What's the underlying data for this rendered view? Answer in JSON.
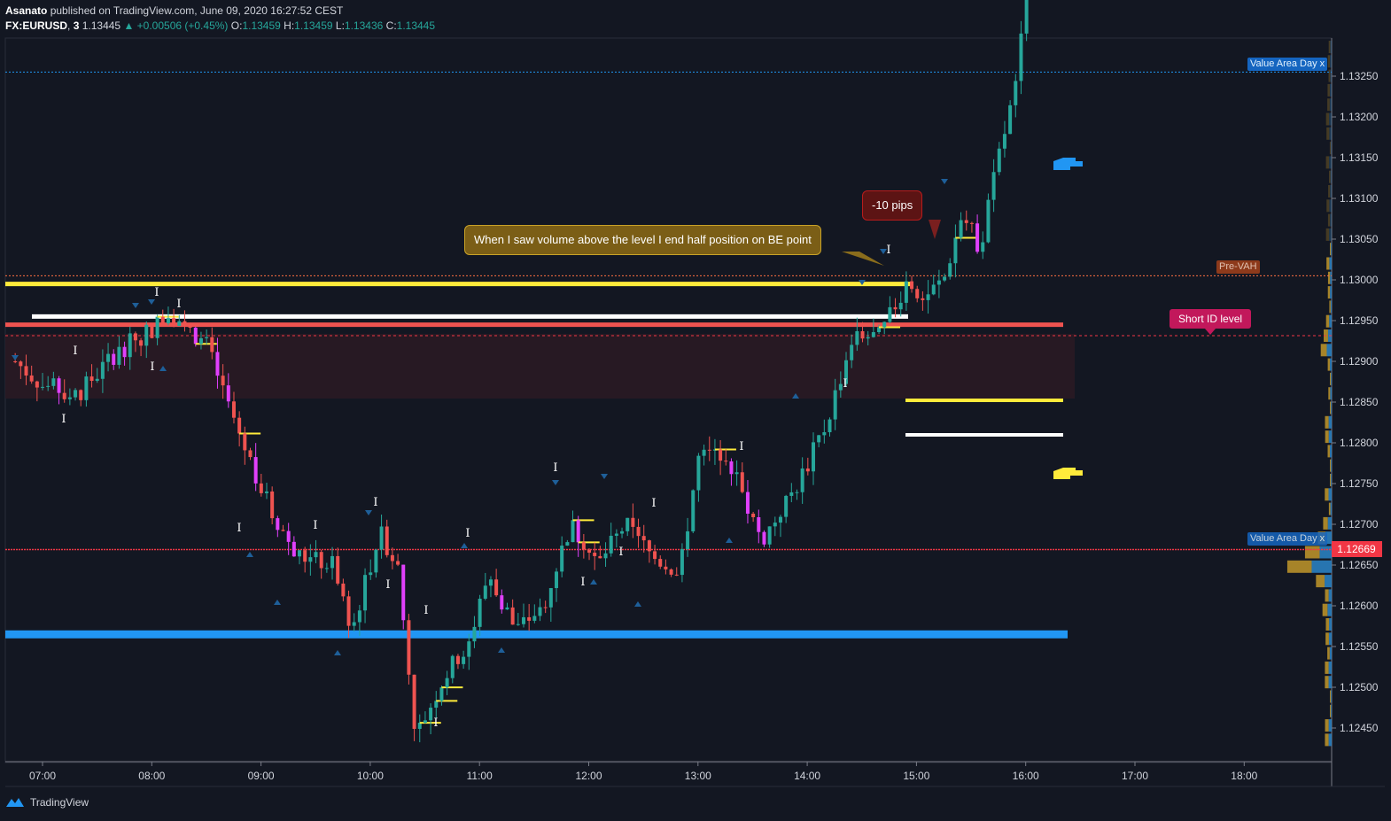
{
  "header": {
    "author": "Asanato",
    "published_text": "published on TradingView.com, June 09, 2020 16:27:52 CEST",
    "symbol": "FX:EURUSD",
    "interval": "3",
    "last": "1.13445",
    "change": "▲ +0.00506 (+0.45%)",
    "o_label": "O:",
    "o": "1.13459",
    "h_label": "H:",
    "h": "1.13459",
    "l_label": "L:",
    "l": "1.13436",
    "c_label": "C:",
    "c": "1.13445"
  },
  "annotations": {
    "callout_be": "When I saw volume above the level I end half position on BE point",
    "callout_pips": "-10 pips",
    "short_id": "Short ID level",
    "pre_vah": "Pre-VAH",
    "value_area_top": "Value Area Day x",
    "value_area_bottom": "Value Area Day x"
  },
  "footer": {
    "brand": "TradingView"
  },
  "colors": {
    "bg": "#131722",
    "up": "#26a69a",
    "down": "#ef5350",
    "magenta": "#e040fb",
    "yellow": "#ffeb3b",
    "blue": "#2196f3",
    "red": "#f23645",
    "white": "#ffffff"
  },
  "chart_data": {
    "type": "candlestick",
    "symbol": "FX:EURUSD",
    "timeframe": "3",
    "x_ticks": [
      "07:00",
      "08:00",
      "09:00",
      "10:00",
      "11:00",
      "12:00",
      "13:00",
      "14:00",
      "15:00",
      "16:00",
      "17:00",
      "18:00"
    ],
    "y_ticks": [
      "1.13250",
      "1.13200",
      "1.13150",
      "1.13100",
      "1.13050",
      "1.13000",
      "1.12950",
      "1.12900",
      "1.12850",
      "1.12800",
      "1.12750",
      "1.12700",
      "1.12650",
      "1.12600",
      "1.12550",
      "1.12500",
      "1.12450"
    ],
    "ylim": [
      1.1239,
      1.1335
    ],
    "current_price_label": "1.12669",
    "levels": [
      {
        "name": "value-area-high",
        "price": 1.12565,
        "color": "#2196f3"
      },
      {
        "name": "yellow-level",
        "price": 1.12995,
        "color": "#ffeb3b"
      },
      {
        "name": "white-level",
        "price": 1.12955,
        "color": "#ffffff"
      },
      {
        "name": "short-id-level",
        "price": 1.12945,
        "color": "#ef5350"
      },
      {
        "name": "pre-vah",
        "price": 1.13005,
        "color": "#ff7043"
      },
      {
        "name": "value-area-day-top",
        "price": 1.13255,
        "color": "#2196f3"
      },
      {
        "name": "value-area-day-bottom",
        "price": 1.12669,
        "color": "#f23645"
      }
    ],
    "path": [
      [
        "06:45",
        1.129
      ],
      [
        "07:00",
        1.1287
      ],
      [
        "07:20",
        1.1286
      ],
      [
        "07:40",
        1.1291
      ],
      [
        "08:00",
        1.1294
      ],
      [
        "08:10",
        1.1296
      ],
      [
        "08:30",
        1.1292
      ],
      [
        "08:50",
        1.128
      ],
      [
        "09:05",
        1.1272
      ],
      [
        "09:20",
        1.1266
      ],
      [
        "09:40",
        1.1265
      ],
      [
        "09:50",
        1.1257
      ],
      [
        "10:05",
        1.1269
      ],
      [
        "10:15",
        1.1265
      ],
      [
        "10:25",
        1.1244
      ],
      [
        "10:40",
        1.1251
      ],
      [
        "10:55",
        1.1256
      ],
      [
        "11:05",
        1.1264
      ],
      [
        "11:20",
        1.1257
      ],
      [
        "11:35",
        1.126
      ],
      [
        "11:50",
        1.127
      ],
      [
        "12:05",
        1.1265
      ],
      [
        "12:20",
        1.127
      ],
      [
        "12:35",
        1.1266
      ],
      [
        "12:50",
        1.1264
      ],
      [
        "13:00",
        1.1278
      ],
      [
        "13:15",
        1.1279
      ],
      [
        "13:35",
        1.1268
      ],
      [
        "13:55",
        1.1275
      ],
      [
        "14:10",
        1.1282
      ],
      [
        "14:25",
        1.1293
      ],
      [
        "14:40",
        1.1293
      ],
      [
        "14:55",
        1.13
      ],
      [
        "15:05",
        1.1298
      ],
      [
        "15:15",
        1.13
      ],
      [
        "15:25",
        1.1308
      ],
      [
        "15:35",
        1.1304
      ],
      [
        "15:45",
        1.1315
      ],
      [
        "15:55",
        1.1324
      ],
      [
        "16:05",
        1.1345
      ]
    ]
  }
}
